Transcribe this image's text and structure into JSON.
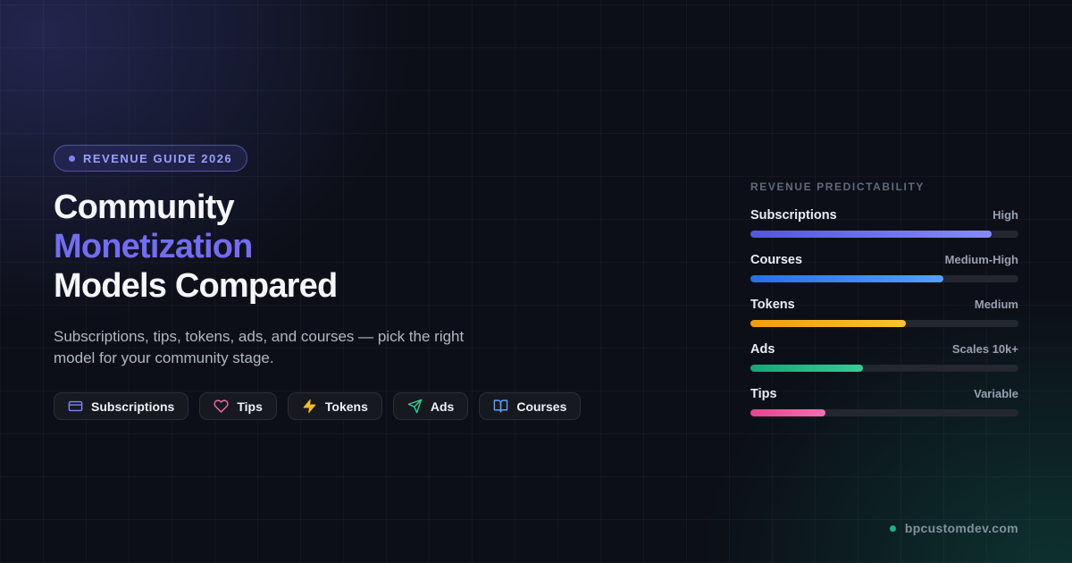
{
  "badge": {
    "label": "REVENUE GUIDE 2026",
    "dot_color": "#7d83f7"
  },
  "hero": {
    "title_line1": "Community",
    "title_line2": "Monetization",
    "title_line3": "Models Compared",
    "accent_color": "#746cf1",
    "subtitle": "Subscriptions, tips, tokens, ads, and courses — pick the right model for your community stage."
  },
  "pills": [
    {
      "label": "Subscriptions",
      "icon": "credit-card-icon",
      "color": "#8187f6"
    },
    {
      "label": "Tips",
      "icon": "heart-icon",
      "color": "#f16ea8"
    },
    {
      "label": "Tokens",
      "icon": "zap-icon",
      "color": "#f5b82e"
    },
    {
      "label": "Ads",
      "icon": "send-icon",
      "color": "#2fcc92"
    },
    {
      "label": "Courses",
      "icon": "book-open-icon",
      "color": "#58a2f8"
    }
  ],
  "chart_data": {
    "type": "bar",
    "orientation": "horizontal",
    "title": "REVENUE PREDICTABILITY",
    "categories": [
      "Subscriptions",
      "Courses",
      "Tokens",
      "Ads",
      "Tips"
    ],
    "value_labels": [
      "High",
      "Medium-High",
      "Medium",
      "Scales 10k+",
      "Variable"
    ],
    "values": [
      90,
      72,
      58,
      42,
      28
    ],
    "value_unit": "percent-of-track",
    "xlim": [
      0,
      100
    ],
    "grid": false,
    "legend": "none",
    "bar_gradients": [
      [
        "#5357d8",
        "#848bf8"
      ],
      [
        "#2a6cf0",
        "#55a0fb"
      ],
      [
        "#f29b13",
        "#fbc32d"
      ],
      [
        "#12a878",
        "#32cf94"
      ],
      [
        "#e2458f",
        "#f56eb3"
      ]
    ],
    "track_color": "#23272f"
  },
  "footer": {
    "site": "bpcustomdev.com",
    "dot_color": "#19b38a"
  }
}
